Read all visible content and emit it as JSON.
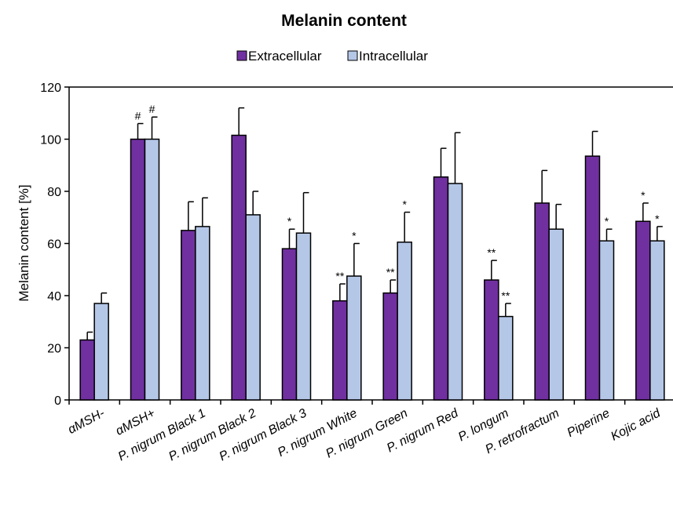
{
  "chart_data": {
    "type": "bar",
    "title": "Melanin content",
    "xlabel": "",
    "ylabel": "Melanin content [%]",
    "ylim": [
      0,
      120
    ],
    "yticks": [
      0,
      20,
      40,
      60,
      80,
      100,
      120
    ],
    "grid": false,
    "legend_position": "top",
    "categories": [
      "αMSH-",
      "αMSH+",
      "P. nigrum Black 1",
      "P. nigrum Black 2",
      "P. nigrum Black 3",
      "P. nigrum White",
      "P. nigrum Green",
      "P. nigrum Red",
      "P. longum",
      "P. retrofractum",
      "Piperine",
      "Kojic acid"
    ],
    "series": [
      {
        "name": "Extracellular",
        "color": "#7030A0",
        "values": [
          23,
          100,
          65,
          101.5,
          58,
          38,
          41,
          85.5,
          46,
          75.5,
          93.5,
          68.5
        ],
        "errors": [
          3,
          6,
          11,
          10.5,
          7.5,
          6.5,
          5,
          11,
          7.5,
          12.5,
          9.5,
          7
        ],
        "significance": [
          "",
          "#",
          "",
          "",
          "*",
          "**",
          "**",
          "",
          "**",
          "",
          "",
          "*"
        ]
      },
      {
        "name": "Intracellular",
        "color": "#B4C7E7",
        "values": [
          37,
          100,
          66.5,
          71,
          64,
          47.5,
          60.5,
          83,
          32,
          65.5,
          61,
          61
        ],
        "errors": [
          4,
          8.5,
          11,
          9,
          15.5,
          12.5,
          11.5,
          19.5,
          5,
          9.5,
          4.5,
          5.5
        ],
        "significance": [
          "",
          "#",
          "",
          "",
          "",
          "*",
          "*",
          "",
          "**",
          "",
          "*",
          "*"
        ]
      }
    ]
  }
}
